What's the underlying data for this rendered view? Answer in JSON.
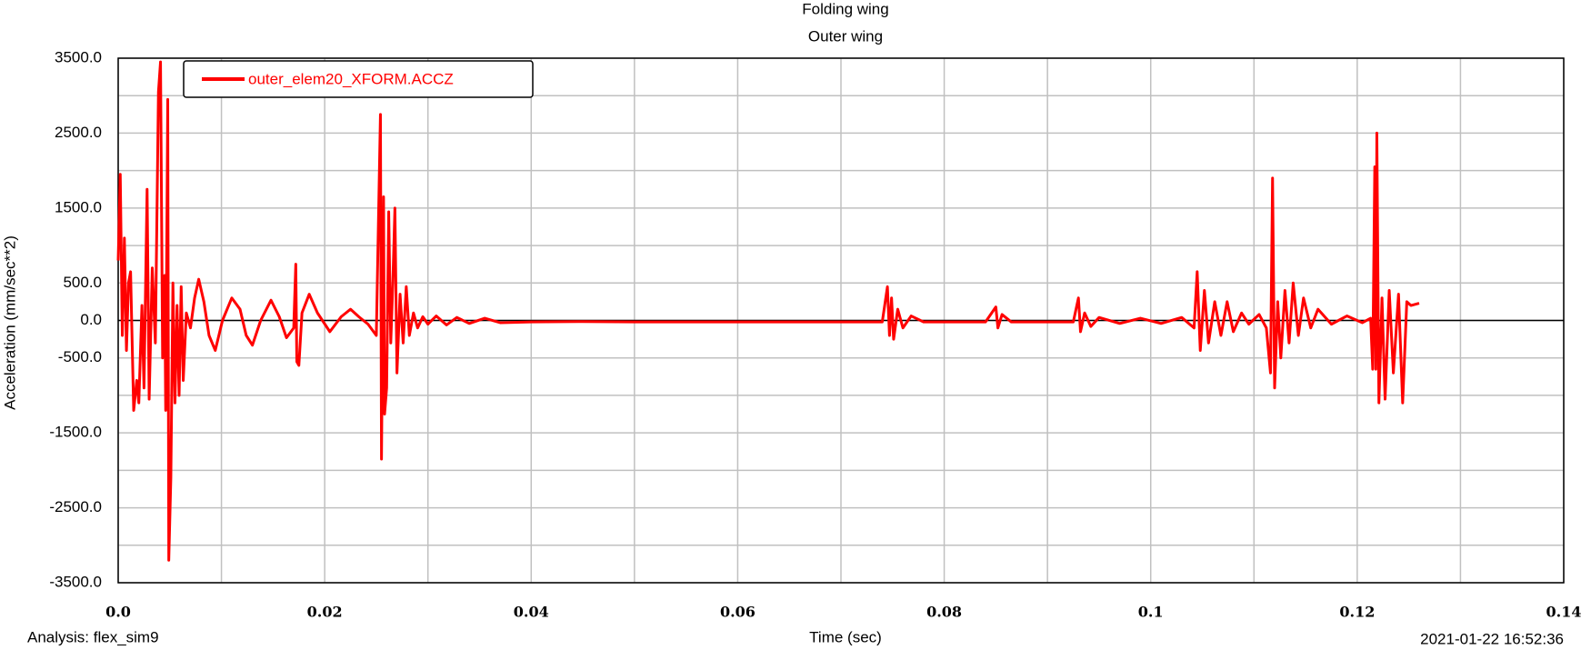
{
  "chart_data": {
    "type": "line",
    "title": "Folding wing",
    "subtitle": "Outer wing",
    "xlabel": "Time (sec)",
    "ylabel": "Acceleration (mm/sec**2)",
    "analysis": "Analysis:  flex_sim9",
    "timestamp": "2021-01-22 16:52:36",
    "legend": "upper left",
    "grid": true,
    "zero_line": true,
    "xlim": [
      0,
      0.14
    ],
    "ylim": [
      -3500,
      3500
    ],
    "xticks": [
      {
        "value": 0,
        "label": "0.0"
      },
      0.02,
      0.04,
      0.06,
      0.08,
      0.1,
      0.12,
      0.14
    ],
    "yticks": [
      {
        "value": 3500,
        "label": "3500.0"
      },
      {
        "value": 2500,
        "label": "2500.0"
      },
      {
        "value": 1500,
        "label": "1500.0"
      },
      {
        "value": 500,
        "label": "500.0"
      },
      {
        "value": 0,
        "label": "0.0"
      },
      {
        "value": -500,
        "label": "-500.0"
      },
      {
        "value": -1500,
        "label": "-1500.0"
      },
      {
        "value": -2500,
        "label": "-2500.0"
      },
      {
        "value": -3500,
        "label": "-3500.0"
      }
    ],
    "xgrid": [
      0.01,
      0.03,
      0.05,
      0.07,
      0.09,
      0.11,
      0.13
    ],
    "ygrid": [
      3000,
      2000,
      1000,
      -1000,
      -2000,
      -3000
    ],
    "x": [
      0.0,
      0.0002,
      0.0004,
      0.0006,
      0.0008,
      0.001,
      0.0012,
      0.0015,
      0.0018,
      0.002,
      0.0023,
      0.0025,
      0.0028,
      0.003,
      0.0033,
      0.0036,
      0.0039,
      0.0041,
      0.0043,
      0.0045,
      0.0046,
      0.0048,
      0.0049,
      0.0051,
      0.0053,
      0.0055,
      0.0057,
      0.0059,
      0.0061,
      0.0063,
      0.0066,
      0.007,
      0.0074,
      0.0078,
      0.0083,
      0.0088,
      0.0094,
      0.0101,
      0.011,
      0.0118,
      0.0124,
      0.013,
      0.0138,
      0.0148,
      0.0156,
      0.0163,
      0.017,
      0.0172,
      0.0173,
      0.0175,
      0.0178,
      0.0185,
      0.0193,
      0.0205,
      0.0216,
      0.0225,
      0.0233,
      0.0242,
      0.025,
      0.0254,
      0.0255,
      0.0257,
      0.0258,
      0.026,
      0.0262,
      0.0264,
      0.0266,
      0.0268,
      0.027,
      0.0273,
      0.0276,
      0.0279,
      0.0282,
      0.0286,
      0.029,
      0.0295,
      0.03,
      0.0308,
      0.0318,
      0.0328,
      0.034,
      0.0355,
      0.037,
      0.04,
      0.045,
      0.05,
      0.06,
      0.07,
      0.074,
      0.0745,
      0.0747,
      0.0749,
      0.0751,
      0.0755,
      0.076,
      0.0768,
      0.078,
      0.084,
      0.085,
      0.0852,
      0.0856,
      0.0865,
      0.0925,
      0.093,
      0.0932,
      0.0936,
      0.0942,
      0.095,
      0.097,
      0.099,
      0.101,
      0.103,
      0.1042,
      0.1045,
      0.1048,
      0.1052,
      0.1056,
      0.1062,
      0.1068,
      0.1074,
      0.108,
      0.1088,
      0.1095,
      0.1105,
      0.1112,
      0.1116,
      0.1118,
      0.112,
      0.1123,
      0.1126,
      0.113,
      0.1134,
      0.1138,
      0.1143,
      0.1148,
      0.1155,
      0.1162,
      0.1175,
      0.119,
      0.1205,
      0.1213,
      0.1215,
      0.1217,
      0.1218,
      0.1219,
      0.1221,
      0.1224,
      0.1227,
      0.1231,
      0.1235,
      0.124,
      0.1244,
      0.1248,
      0.1252,
      0.126
    ],
    "series": [
      {
        "name": "outer_elem20_XFORM.ACCZ",
        "color": "#ff0000",
        "values": [
          800,
          1950,
          -200,
          1100,
          -400,
          500,
          650,
          -1200,
          -800,
          -1100,
          200,
          -900,
          1750,
          -1050,
          700,
          -300,
          3050,
          3450,
          -500,
          600,
          -1200,
          2950,
          -3200,
          -2100,
          500,
          -1100,
          200,
          -1000,
          450,
          -800,
          100,
          -100,
          300,
          550,
          250,
          -200,
          -400,
          0,
          300,
          150,
          -200,
          -330,
          0,
          270,
          50,
          -230,
          -100,
          750,
          -550,
          -600,
          100,
          350,
          100,
          -150,
          50,
          150,
          50,
          -50,
          -200,
          2750,
          -1850,
          1650,
          -1250,
          -900,
          1450,
          -300,
          500,
          1500,
          -700,
          350,
          -300,
          450,
          -200,
          100,
          -100,
          50,
          -50,
          60,
          -60,
          40,
          -40,
          30,
          -30,
          -20,
          -15,
          -20,
          -20,
          -20,
          -20,
          450,
          -200,
          300,
          -250,
          150,
          -100,
          60,
          -20,
          -20,
          180,
          -100,
          80,
          -20,
          -20,
          300,
          -150,
          100,
          -80,
          40,
          -40,
          30,
          -40,
          40,
          -100,
          650,
          -400,
          400,
          -300,
          250,
          -200,
          250,
          -150,
          100,
          -50,
          80,
          -100,
          -700,
          1900,
          -900,
          250,
          -500,
          400,
          -300,
          500,
          -200,
          300,
          -100,
          150,
          -50,
          60,
          -30,
          30,
          -650,
          2050,
          -650,
          2500,
          -1100,
          300,
          -1050,
          400,
          -700,
          350,
          -1100,
          250,
          200,
          230
        ]
      }
    ]
  }
}
